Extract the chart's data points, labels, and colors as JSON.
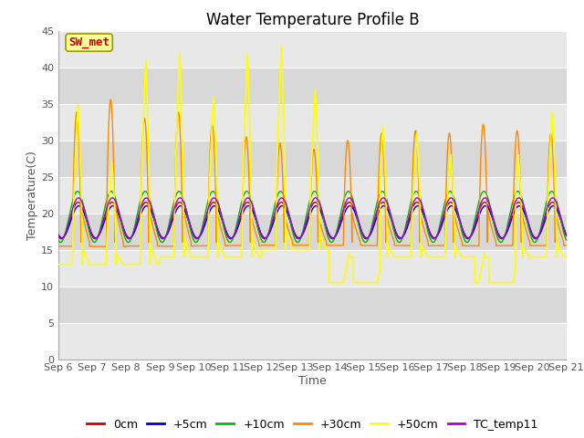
{
  "title": "Water Temperature Profile B",
  "xlabel": "Time",
  "ylabel": "Temperature(C)",
  "ylim": [
    0,
    45
  ],
  "yticks": [
    0,
    5,
    10,
    15,
    20,
    25,
    30,
    35,
    40,
    45
  ],
  "n_days": 15,
  "series": {
    "0cm": {
      "color": "#cc0000",
      "lw": 1.0
    },
    "+5cm": {
      "color": "#0000cc",
      "lw": 1.0
    },
    "+10cm": {
      "color": "#00bb00",
      "lw": 1.0
    },
    "+30cm": {
      "color": "#ff8800",
      "lw": 1.0
    },
    "+50cm": {
      "color": "#ffff00",
      "lw": 1.2
    },
    "TC_temp11": {
      "color": "#aa00cc",
      "lw": 1.0
    }
  },
  "legend_order": [
    "0cm",
    "+5cm",
    "+10cm",
    "+30cm",
    "+50cm",
    "TC_temp11"
  ],
  "sw_met_box": {
    "text": "SW_met",
    "text_color": "#cc0000",
    "bg_color": "#ffff99",
    "edge_color": "#999900"
  },
  "bg_color": "#ffffff",
  "band_colors": [
    "#e8e8e8",
    "#d8d8d8"
  ],
  "font_size_title": 12,
  "font_size_axis": 9,
  "font_size_tick": 8,
  "font_size_legend": 9
}
